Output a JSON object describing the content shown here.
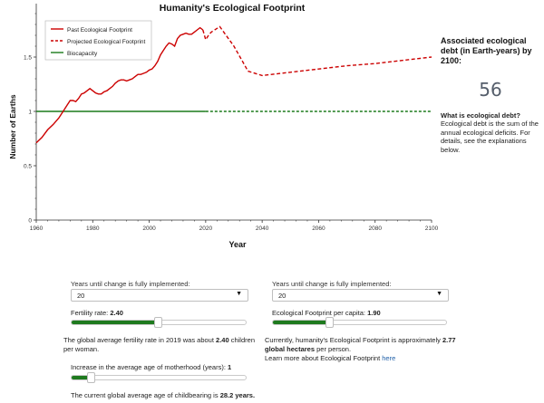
{
  "chart_data": {
    "type": "line",
    "title": "Humanity's Ecological Footprint",
    "xlabel": "Year",
    "ylabel": "Number of Earths",
    "xlim": [
      1960,
      2100
    ],
    "ylim": [
      0,
      2
    ],
    "x_ticks": [
      1960,
      1980,
      2000,
      2020,
      2040,
      2060,
      2080,
      2100
    ],
    "y_ticks": [
      0,
      0.5,
      1,
      1.5
    ],
    "y_tick_labels": [
      "0",
      "0.5",
      "1",
      "1.5"
    ],
    "grid": false,
    "legend_position": "top-left",
    "series": [
      {
        "name": "Past Ecological Footprint",
        "color": "#cc0000",
        "style": "solid",
        "x": [
          1960,
          1962,
          1964,
          1966,
          1968,
          1970,
          1971,
          1972,
          1973,
          1974,
          1975,
          1976,
          1977,
          1978,
          1979,
          1980,
          1981,
          1982,
          1983,
          1984,
          1985,
          1986,
          1987,
          1988,
          1989,
          1990,
          1991,
          1992,
          1993,
          1994,
          1995,
          1996,
          1997,
          1998,
          1999,
          2000,
          2001,
          2002,
          2003,
          2004,
          2005,
          2006,
          2007,
          2008,
          2009,
          2010,
          2011,
          2012,
          2013,
          2014,
          2015,
          2016,
          2017,
          2018,
          2019
        ],
        "y": [
          0.71,
          0.76,
          0.83,
          0.88,
          0.94,
          1.02,
          1.06,
          1.1,
          1.1,
          1.09,
          1.12,
          1.16,
          1.17,
          1.19,
          1.21,
          1.19,
          1.17,
          1.16,
          1.16,
          1.18,
          1.19,
          1.21,
          1.23,
          1.26,
          1.28,
          1.29,
          1.29,
          1.28,
          1.29,
          1.3,
          1.32,
          1.34,
          1.34,
          1.35,
          1.36,
          1.38,
          1.39,
          1.42,
          1.46,
          1.52,
          1.56,
          1.6,
          1.63,
          1.62,
          1.6,
          1.67,
          1.7,
          1.71,
          1.72,
          1.71,
          1.71,
          1.73,
          1.75,
          1.77,
          1.75
        ]
      },
      {
        "name": "Projected Ecological Footprint",
        "color": "#cc0000",
        "style": "dashed",
        "x": [
          2019,
          2020,
          2021,
          2022,
          2025,
          2030,
          2035,
          2040,
          2050,
          2060,
          2070,
          2080,
          2090,
          2100
        ],
        "y": [
          1.75,
          1.66,
          1.7,
          1.73,
          1.78,
          1.6,
          1.37,
          1.33,
          1.36,
          1.39,
          1.42,
          1.44,
          1.47,
          1.5
        ]
      },
      {
        "name": "Biocapacity",
        "color": "#1a7a1a",
        "style": "solid-then-dashed",
        "x": [
          1960,
          2020,
          2100
        ],
        "y": [
          1,
          1,
          1
        ],
        "solid_until": 2020
      }
    ]
  },
  "side_panel": {
    "heading": "Associated ecological debt (in Earth-years) by 2100:",
    "debt_value": "56",
    "question": "What is ecological debt?",
    "explanation": "Ecological debt is the sum of the annual ecological deficits. For details, see the explanations below."
  },
  "left_controls": {
    "years_label": "Years until change is fully implemented:",
    "years_value": "20",
    "fertility_label": "Fertility rate: ",
    "fertility_value": "2.40",
    "fertility_fraction": 0.49,
    "fertility_info_pre": "The global average fertility rate in 2019 was about ",
    "fertility_info_value": "2.40",
    "fertility_info_post": " children per woman.",
    "motherhood_label": "Increase in the average age of motherhood (years): ",
    "motherhood_value": "1",
    "motherhood_fraction": 0.11,
    "childbearing_info_pre": "The current global average age of childbearing is ",
    "childbearing_info_value": "28.2 years."
  },
  "right_controls": {
    "years_label": "Years until change is fully implemented:",
    "years_value": "20",
    "footprint_label": "Ecological Footprint per capita: ",
    "footprint_value": "1.90",
    "footprint_fraction": 0.32,
    "footprint_info_pre": "Currently, humanity's Ecological Footprint is approximately ",
    "footprint_info_value": "2.77 global hectares",
    "footprint_info_post": " per person.",
    "learn_more_text": "Learn more about Ecological Footprint ",
    "learn_more_link": "here"
  },
  "icons": {
    "dropdown": "chevron-down-icon"
  }
}
